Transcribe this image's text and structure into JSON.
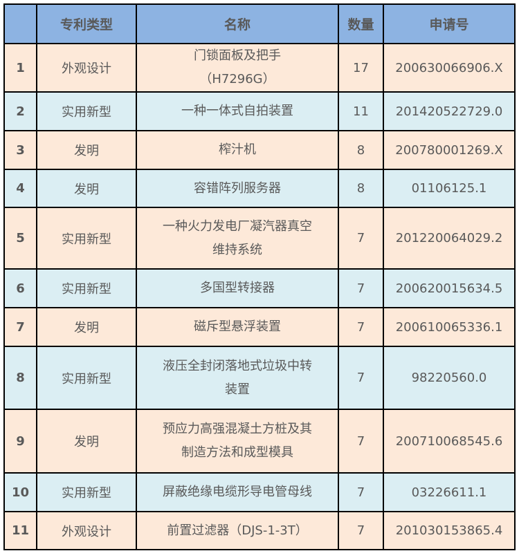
{
  "headers": [
    "",
    "专利类型",
    "名称",
    "数量",
    "申请号"
  ],
  "colors": {
    "header": "#8db3e2",
    "row_odd": "#fde9d9",
    "row_even": "#dbeef3",
    "text": "#595959"
  },
  "rows": [
    {
      "no": "1",
      "type": "外观设计",
      "name": "门锁面板及把手（H7296G）",
      "count": "17",
      "app": "200630066906.X"
    },
    {
      "no": "2",
      "type": "实用新型",
      "name": "一种一体式自拍装置",
      "count": "11",
      "app": "201420522729.0"
    },
    {
      "no": "3",
      "type": "发明",
      "name": "榨汁机",
      "count": "8",
      "app": "200780001269.X"
    },
    {
      "no": "4",
      "type": "发明",
      "name": "容错阵列服务器",
      "count": "8",
      "app": "01106125.1"
    },
    {
      "no": "5",
      "type": "实用新型",
      "name": "一种火力发电厂凝汽器真空维持系统",
      "count": "7",
      "app": "201220064029.2"
    },
    {
      "no": "6",
      "type": "实用新型",
      "name": "多国型转接器",
      "count": "7",
      "app": "200620015634.5"
    },
    {
      "no": "7",
      "type": "发明",
      "name": "磁斥型悬浮装置",
      "count": "7",
      "app": "200610065336.1"
    },
    {
      "no": "8",
      "type": "实用新型",
      "name": "液压全封闭落地式垃圾中转装置",
      "count": "7",
      "app": "98220560.0"
    },
    {
      "no": "9",
      "type": "发明",
      "name": "预应力高强混凝土方桩及其制造方法和成型模具",
      "count": "7",
      "app": "200710068545.6"
    },
    {
      "no": "10",
      "type": "实用新型",
      "name": "屏蔽绝缘电缆形导电管母线",
      "count": "7",
      "app": "03226611.1"
    },
    {
      "no": "11",
      "type": "外观设计",
      "name": "前置过滤器（DJS-1-3T）",
      "count": "7",
      "app": "201030153865.4"
    }
  ]
}
